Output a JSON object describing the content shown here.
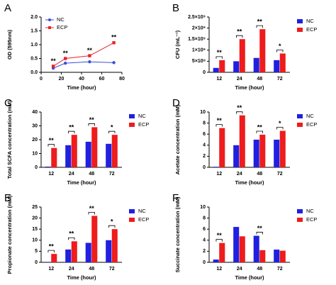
{
  "chart_data": [
    {
      "type": "line",
      "panel": "A",
      "xlabel": "Time (hour)",
      "ylabel": "OD (595nm)",
      "x": [
        12,
        24,
        48,
        72
      ],
      "xlim": [
        0,
        80
      ],
      "xticks": [
        0,
        20,
        40,
        60,
        80
      ],
      "ylim": [
        0,
        2
      ],
      "yticks": [
        {
          "value": 0,
          "label": "0.0"
        },
        0.5,
        {
          "value": 1,
          "label": "1.0"
        },
        1.5,
        {
          "value": 2,
          "label": "2.0"
        }
      ],
      "series": [
        {
          "name": "NC",
          "color": "#3b4fd8",
          "values": [
            0.15,
            0.33,
            0.38,
            0.35
          ]
        },
        {
          "name": "ECP",
          "color": "#e8232a",
          "values": [
            0.22,
            0.5,
            0.6,
            1.07
          ]
        }
      ],
      "annotations": [
        "**",
        "**",
        "**",
        "**"
      ],
      "legend": "upper-left"
    },
    {
      "type": "bar",
      "panel": "B",
      "xlabel": "Time (hour)",
      "ylabel": "CFU (mL⁻¹)",
      "categories": [
        "12",
        "24",
        "48",
        "72"
      ],
      "ylim": [
        0,
        2500000000
      ],
      "yticks": [
        0,
        {
          "value": 500000000,
          "label": "5×10⁸"
        },
        {
          "value": 1000000000,
          "label": "1×10⁹"
        },
        {
          "value": 1500000000,
          "label": "1.5×10⁹"
        },
        {
          "value": 2000000000,
          "label": "2×10⁹"
        },
        {
          "value": 2500000000,
          "label": "2.5×10⁹"
        }
      ],
      "series": [
        {
          "name": "NC",
          "color": "#2020e0",
          "values": [
            200000000,
            500000000,
            650000000,
            550000000
          ]
        },
        {
          "name": "ECP",
          "color": "#ee1c1c",
          "values": [
            550000000,
            1500000000,
            1950000000,
            850000000
          ]
        }
      ],
      "significance": [
        "**",
        "**",
        "**",
        "*"
      ],
      "legend": "right"
    },
    {
      "type": "bar",
      "panel": "C",
      "xlabel": "Time (hour)",
      "ylabel": "Total SCFA concentration (mM)",
      "categories": [
        "12",
        "24",
        "48",
        "72"
      ],
      "ylim": [
        0,
        40
      ],
      "yticks": [
        0,
        10,
        20,
        30,
        40
      ],
      "series": [
        {
          "name": "NC",
          "color": "#2020e0",
          "values": [
            0.5,
            16,
            18.5,
            17
          ]
        },
        {
          "name": "ECP",
          "color": "#ee1c1c",
          "values": [
            14,
            23.5,
            29,
            23.5
          ]
        }
      ],
      "significance": [
        "**",
        "**",
        "**",
        "*"
      ],
      "legend": "right"
    },
    {
      "type": "bar",
      "panel": "D",
      "xlabel": "Time (hour)",
      "ylabel": "Acetate concentration (mM)",
      "categories": [
        "12",
        "24",
        "48",
        "72"
      ],
      "ylim": [
        0,
        10
      ],
      "yticks": [
        0,
        2,
        4,
        6,
        8,
        10
      ],
      "series": [
        {
          "name": "NC",
          "color": "#2020e0",
          "values": [
            0.1,
            4,
            5,
            5
          ]
        },
        {
          "name": "ECP",
          "color": "#ee1c1c",
          "values": [
            7.1,
            9.4,
            5.9,
            6.6
          ]
        }
      ],
      "significance": [
        "**",
        "**",
        "**",
        "*"
      ],
      "legend": "right"
    },
    {
      "type": "bar",
      "panel": "E",
      "xlabel": "Time (hour)",
      "ylabel": "Propionate concentration (mM)",
      "categories": [
        "12",
        "24",
        "48",
        "72"
      ],
      "ylim": [
        0,
        25
      ],
      "yticks": [
        0,
        5,
        10,
        15,
        20,
        25
      ],
      "series": [
        {
          "name": "NC",
          "color": "#2020e0",
          "values": [
            0.2,
            5.8,
            8.8,
            10
          ]
        },
        {
          "name": "ECP",
          "color": "#ee1c1c",
          "values": [
            3.8,
            9.5,
            21,
            15
          ]
        }
      ],
      "significance": [
        "**",
        "**",
        "**",
        "*"
      ],
      "legend": "right"
    },
    {
      "type": "bar",
      "panel": "F",
      "xlabel": "Time (hour)",
      "ylabel": "Succinate concentration (mM)",
      "categories": [
        "12",
        "24",
        "48",
        "72"
      ],
      "ylim": [
        0,
        10
      ],
      "yticks": [
        0,
        2,
        4,
        6,
        8,
        10
      ],
      "series": [
        {
          "name": "NC",
          "color": "#2020e0",
          "values": [
            0.5,
            6.4,
            4.8,
            2.3
          ]
        },
        {
          "name": "ECP",
          "color": "#ee1c1c",
          "values": [
            3.5,
            4.7,
            2.2,
            2.1
          ]
        }
      ],
      "significance": [
        "**",
        null,
        "**",
        null
      ],
      "legend": "right"
    }
  ]
}
